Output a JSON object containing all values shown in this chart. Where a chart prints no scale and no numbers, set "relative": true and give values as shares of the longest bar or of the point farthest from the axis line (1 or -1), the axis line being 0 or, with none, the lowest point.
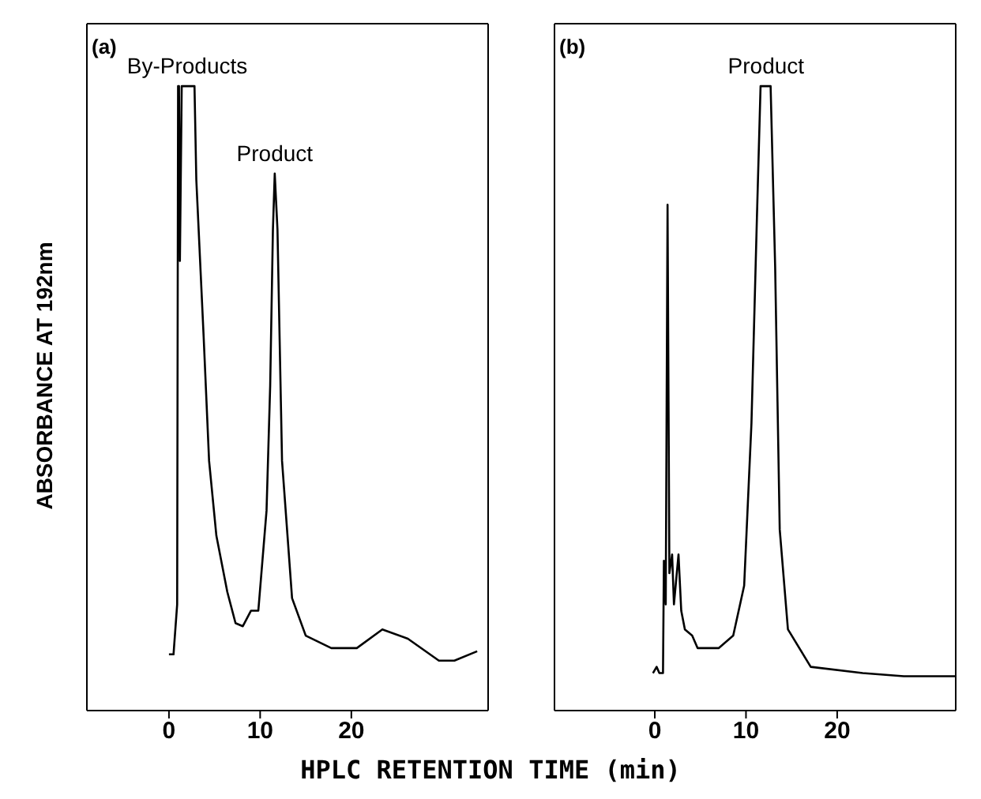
{
  "chart_data": [
    {
      "type": "line",
      "relative": true,
      "ylabel": "ABSORBANCE AT 192nm",
      "xlim": [
        -9,
        35
      ],
      "xticks": [
        0,
        10,
        20
      ],
      "tick_labels": "x",
      "marker": "none",
      "line_style": "solid",
      "annotations": [
        "(a)",
        {
          "text": "By-Products",
          "x": 2,
          "y": 1
        },
        {
          "text": "Product",
          "x": 11.6,
          "y": 0.86
        }
      ],
      "series": [
        {
          "color": "#000000",
          "x": [
            0,
            0.5,
            0.55,
            0.9,
            1.0,
            1.1,
            1.2,
            1.4,
            2.8,
            3.0,
            3.8,
            4.4,
            5.2,
            6.4,
            7.3,
            8.1,
            9.0,
            9.8,
            10.7,
            11.1,
            11.4,
            11.6,
            11.9,
            12.4,
            13.5,
            15.0,
            17.8,
            20.6,
            23.4,
            26.2,
            29.6,
            31.3,
            33.8
          ],
          "values": [
            0.09,
            0.09,
            0.1,
            0.17,
            1,
            1,
            0.72,
            1,
            1,
            0.85,
            0.6,
            0.4,
            0.28,
            0.19,
            0.14,
            0.135,
            0.16,
            0.16,
            0.32,
            0.52,
            0.77,
            0.86,
            0.77,
            0.4,
            0.18,
            0.12,
            0.1,
            0.1,
            0.13,
            0.115,
            0.08,
            0.08,
            0.095
          ]
        }
      ]
    },
    {
      "type": "line",
      "relative": true,
      "xlabel": "HPLC RETENTION TIME (min)",
      "xlim": [
        -11,
        33
      ],
      "xticks": [
        0,
        10,
        20
      ],
      "tick_labels": "x",
      "marker": "none",
      "line_style": "solid",
      "annotations": [
        "(b)",
        {
          "text": "Product",
          "x": 12.2,
          "y": 1
        }
      ],
      "series": [
        {
          "color": "#000000",
          "x": [
            -0.2,
            0.2,
            0.5,
            0.9,
            1.0,
            1.2,
            1.4,
            1.6,
            1.9,
            2.1,
            2.6,
            2.9,
            3.3,
            4.1,
            4.7,
            7.0,
            8.6,
            9.8,
            10.6,
            11.2,
            11.6,
            12.7,
            13.2,
            13.7,
            14.6,
            17.1,
            22.8,
            27.3,
            33
          ],
          "values": [
            0.06,
            0.07,
            0.06,
            0.06,
            0.24,
            0.17,
            0.81,
            0.22,
            0.25,
            0.17,
            0.25,
            0.16,
            0.13,
            0.12,
            0.1,
            0.1,
            0.12,
            0.2,
            0.46,
            0.79,
            1,
            1,
            0.71,
            0.29,
            0.13,
            0.07,
            0.06,
            0.055,
            0.055
          ]
        }
      ]
    }
  ]
}
